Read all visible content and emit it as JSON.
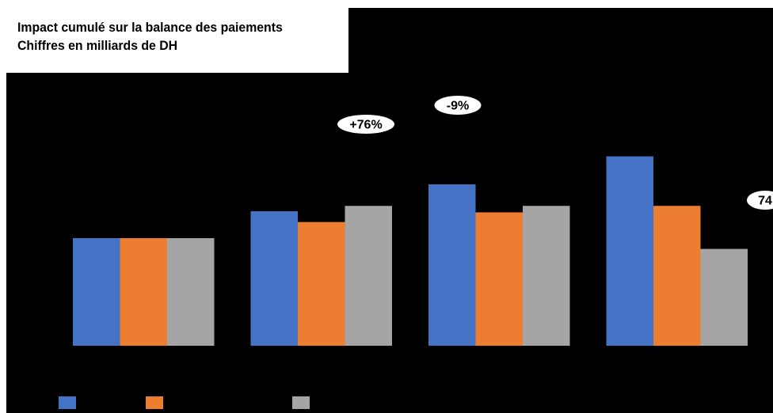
{
  "header": {
    "title": "Impact cumulé sur la balance des paiements",
    "subtitle": "Chiffres en milliards de DH"
  },
  "annotations": [
    {
      "label": "+76%",
      "group": 1
    },
    {
      "label": "-9%",
      "group": 2
    },
    {
      "label": "74",
      "group": 3
    }
  ],
  "colors": {
    "series_1": "#4472C4",
    "series_2": "#ED7D31",
    "series_3": "#A5A5A5",
    "background": "#000000",
    "badge": "#ffffff"
  },
  "chart_data": {
    "type": "bar",
    "title": "Impact cumulé sur la balance des paiements",
    "subtitle": "Chiffres en milliards de DH",
    "categories": [
      "",
      "",
      "",
      ""
    ],
    "series": [
      {
        "values": [
          100,
          125,
          150,
          176
        ]
      },
      {
        "values": [
          100,
          115,
          124,
          130
        ]
      },
      {
        "values": [
          100,
          130,
          130,
          90
        ]
      }
    ],
    "ylim": [
      0,
      200
    ],
    "grid": false,
    "legend": "bottom-left"
  }
}
